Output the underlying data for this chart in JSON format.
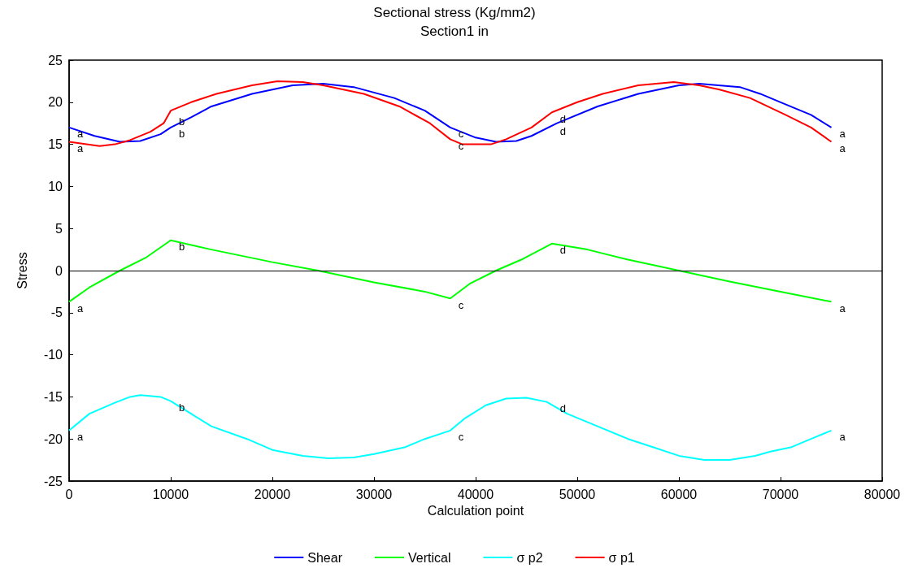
{
  "chart_data": {
    "type": "line",
    "title": "Sectional stress (Kg/mm2)",
    "subtitle": "Section1 in",
    "xlabel": "Calculation point",
    "ylabel": "Stress",
    "xlim": [
      0,
      80000
    ],
    "xticks": [
      0,
      10000,
      20000,
      30000,
      40000,
      50000,
      60000,
      70000,
      80000
    ],
    "ylim": [
      -25,
      25
    ],
    "yticks": [
      -25,
      -20,
      -15,
      -10,
      -5,
      0,
      5,
      10,
      15,
      20,
      25
    ],
    "grid": false,
    "legend": "bottom",
    "marker": "none",
    "line_style": "solid",
    "ref_lines": [
      {
        "axis": "y",
        "value": 0,
        "color": "#000000"
      }
    ],
    "series": [
      {
        "name": "Shear",
        "color": "#0000ff",
        "x": [
          0,
          2500,
          5000,
          7000,
          9000,
          10000,
          12000,
          14000,
          18000,
          22000,
          25000,
          28000,
          32000,
          35000,
          37500,
          40000,
          42000,
          44000,
          45500,
          48000,
          52000,
          56000,
          60000,
          62000,
          66000,
          68000,
          70000,
          73000,
          75000
        ],
        "values": [
          17,
          16,
          15.3,
          15.4,
          16.2,
          17,
          18.2,
          19.5,
          21,
          22,
          22.2,
          21.8,
          20.5,
          19,
          17,
          15.8,
          15.3,
          15.4,
          16,
          17.5,
          19.5,
          21,
          22,
          22.2,
          21.8,
          21,
          20,
          18.5,
          17
        ]
      },
      {
        "name": "Vertical",
        "color": "#00ff00",
        "x": [
          0,
          2000,
          5000,
          7500,
          10000,
          14000,
          20000,
          24500,
          30000,
          35000,
          37500,
          39500,
          42000,
          44500,
          47500,
          51000,
          55000,
          60000,
          65000,
          70000,
          75000
        ],
        "values": [
          -3.7,
          -2,
          0,
          1.5,
          3.6,
          2.5,
          1,
          0,
          -1.4,
          -2.5,
          -3.3,
          -1.5,
          0,
          1.3,
          3.2,
          2.5,
          1.3,
          0,
          -1.3,
          -2.5,
          -3.7
        ]
      },
      {
        "name": "σ p2",
        "color": "#00ffff",
        "x": [
          0,
          2000,
          4500,
          6000,
          7000,
          9000,
          10000,
          12000,
          14000,
          17500,
          20000,
          23000,
          25500,
          28000,
          30000,
          33000,
          35000,
          37500,
          39000,
          41000,
          43000,
          45000,
          47000,
          49000,
          52000,
          55000,
          57500,
          60000,
          62500,
          65000,
          67500,
          69000,
          71000,
          73000,
          75000
        ],
        "values": [
          -19,
          -17,
          -15.7,
          -15,
          -14.8,
          -15,
          -15.5,
          -17,
          -18.5,
          -20,
          -21.3,
          -22,
          -22.3,
          -22.2,
          -21.8,
          -21,
          -20,
          -19,
          -17.5,
          -16,
          -15.2,
          -15.1,
          -15.6,
          -17,
          -18.5,
          -20,
          -21,
          -22,
          -22.5,
          -22.5,
          -22,
          -21.5,
          -21,
          -20,
          -19
        ]
      },
      {
        "name": "σ p1",
        "color": "#ff0000",
        "x": [
          0,
          3000,
          4500,
          6000,
          8000,
          9300,
          10000,
          12000,
          14500,
          18000,
          20500,
          23000,
          25000,
          29000,
          32500,
          35500,
          37500,
          38700,
          41500,
          43000,
          45500,
          47500,
          50000,
          52500,
          56000,
          59500,
          62000,
          64000,
          67000,
          70500,
          73000,
          75000
        ],
        "values": [
          15.3,
          14.8,
          15,
          15.5,
          16.5,
          17.5,
          19,
          20,
          21,
          22,
          22.5,
          22.4,
          22,
          21,
          19.5,
          17.5,
          15.6,
          15,
          15,
          15.6,
          17,
          18.8,
          20,
          21,
          22,
          22.4,
          22,
          21.5,
          20.5,
          18.5,
          17,
          15.3
        ]
      }
    ],
    "annotations": [
      {
        "text": "a",
        "x": 0,
        "y": 17
      },
      {
        "text": "a",
        "x": 0,
        "y": 15.3
      },
      {
        "text": "a",
        "x": 0,
        "y": -3.7
      },
      {
        "text": "a",
        "x": 0,
        "y": -19
      },
      {
        "text": "b",
        "x": 10000,
        "y": 18.5
      },
      {
        "text": "b",
        "x": 10000,
        "y": 17
      },
      {
        "text": "b",
        "x": 10000,
        "y": 3.6
      },
      {
        "text": "b",
        "x": 10000,
        "y": -15.5
      },
      {
        "text": "c",
        "x": 37500,
        "y": 17
      },
      {
        "text": "c",
        "x": 37500,
        "y": 15.6
      },
      {
        "text": "c",
        "x": 37500,
        "y": -3.3
      },
      {
        "text": "c",
        "x": 37500,
        "y": -19
      },
      {
        "text": "d",
        "x": 47500,
        "y": 18.8
      },
      {
        "text": "d",
        "x": 47500,
        "y": 17.3
      },
      {
        "text": "d",
        "x": 47500,
        "y": 3.2
      },
      {
        "text": "d",
        "x": 47500,
        "y": -15.6
      },
      {
        "text": "a",
        "x": 75000,
        "y": 17
      },
      {
        "text": "a",
        "x": 75000,
        "y": 15.3
      },
      {
        "text": "a",
        "x": 75000,
        "y": -3.7
      },
      {
        "text": "a",
        "x": 75000,
        "y": -19
      }
    ]
  }
}
